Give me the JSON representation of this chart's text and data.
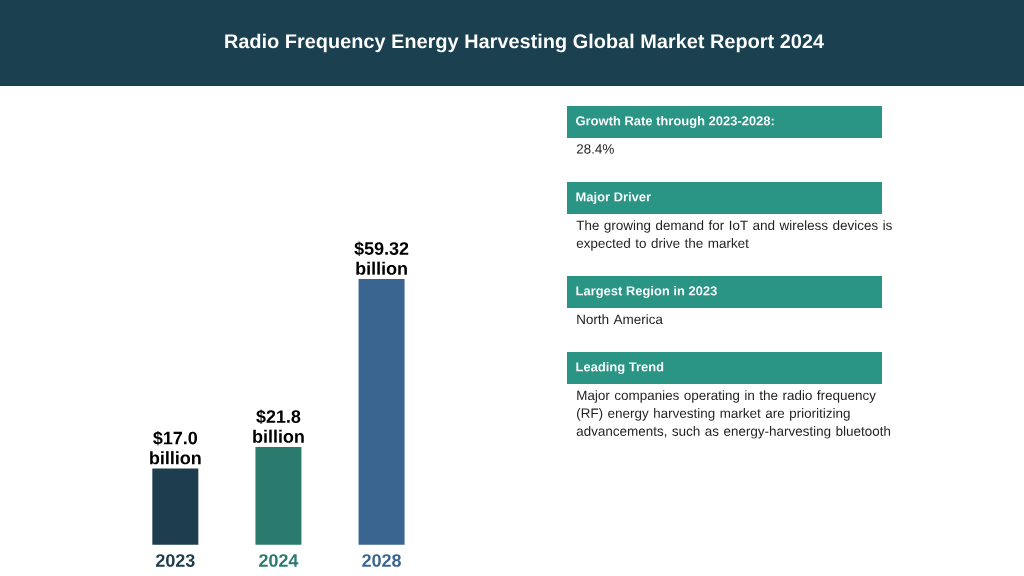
{
  "chart_data": [
    {
      "type": "bar",
      "title": "Radio Frequency Energy Harvesting Global Market Report 2024",
      "categories": [
        "2023",
        "2024",
        "2028"
      ],
      "values": [
        17.0,
        21.8,
        59.32
      ],
      "colors": [
        "#1e3d4f",
        "#2b7a6e",
        "#3a6590"
      ],
      "value_labels": [
        "$17.0 billion",
        "$21.8 billion",
        "$59.32 billion"
      ]
    },
    {
      "type": "other",
      "annotations": [
        "Growth Rate through 2023-2028:",
        "28.4%",
        "Major Driver",
        "The growing demand for IoT and wireless devices is expected to drive the market",
        "Largest Region in 2023",
        "North America",
        "Leading Trend",
        "Major companies operating in the radio frequency (RF) energy harvesting market are prioritizing advancements, such as energy-harvesting bluetooth"
      ]
    }
  ]
}
